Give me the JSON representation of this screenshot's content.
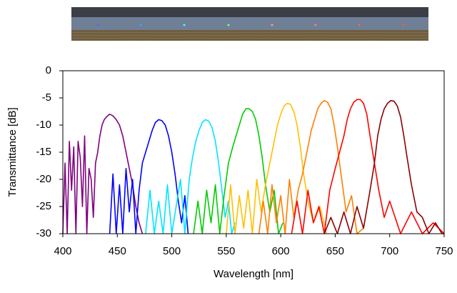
{
  "chart_data": {
    "type": "line",
    "xlabel": "Wavelength [nm]",
    "ylabel": "Transmittance [dB]",
    "xlim": [
      400,
      750
    ],
    "xticks": [
      400,
      450,
      500,
      550,
      600,
      650,
      700,
      750
    ],
    "ylim": [
      -30,
      0
    ],
    "yticks": [
      0,
      -5,
      -10,
      -15,
      -20,
      -25,
      -30
    ],
    "grid": false,
    "series": [
      {
        "color": "#800080",
        "x": [
          400,
          402,
          404,
          406,
          408,
          410,
          412,
          414,
          416,
          418,
          420,
          422,
          424,
          426,
          428,
          430,
          432,
          434,
          436,
          438,
          440,
          443,
          446,
          449,
          452,
          455,
          458,
          461,
          464,
          467,
          470,
          473
        ],
        "values": [
          -30,
          -17,
          -30,
          -13,
          -22,
          -14,
          -30,
          -13,
          -16,
          -25,
          -12,
          -30,
          -18,
          -20,
          -27,
          -17,
          -15,
          -12,
          -10,
          -9,
          -8.5,
          -8,
          -8.3,
          -9,
          -10,
          -12,
          -15,
          -18,
          -21,
          -25,
          -28,
          -30
        ]
      },
      {
        "color": "#0000ff",
        "x": [
          443,
          446,
          449,
          452,
          455,
          458,
          461,
          464,
          467,
          470,
          473,
          476,
          479,
          482,
          485,
          488,
          491,
          494,
          497,
          500,
          503,
          506,
          509,
          512,
          515
        ],
        "values": [
          -30,
          -19,
          -30,
          -21,
          -30,
          -18,
          -26,
          -20,
          -30,
          -22,
          -17,
          -15,
          -13,
          -11,
          -9.5,
          -9,
          -9.2,
          -10,
          -12,
          -15,
          -19,
          -24,
          -28,
          -23,
          -30
        ]
      },
      {
        "color": "#00e5ff",
        "x": [
          476,
          480,
          484,
          488,
          492,
          496,
          500,
          504,
          508,
          512,
          516,
          519,
          522,
          525,
          528,
          531,
          534,
          537,
          540,
          543,
          546,
          549,
          552,
          555,
          558
        ],
        "values": [
          -30,
          -22,
          -30,
          -24,
          -30,
          -21,
          -30,
          -25,
          -20,
          -30,
          -20,
          -16,
          -13,
          -11,
          -9.5,
          -9,
          -9.3,
          -10.5,
          -13,
          -17,
          -22,
          -27,
          -24,
          -30,
          -28
        ]
      },
      {
        "color": "#00cc00",
        "x": [
          520,
          524,
          528,
          532,
          536,
          540,
          544,
          548,
          552,
          556,
          559,
          562,
          565,
          568,
          571,
          574,
          577,
          580,
          583,
          586,
          590,
          594,
          598,
          602
        ],
        "values": [
          -30,
          -24,
          -30,
          -22,
          -28,
          -21,
          -30,
          -23,
          -17,
          -14,
          -12,
          -10,
          -8,
          -7,
          -7,
          -7.5,
          -9,
          -12,
          -16,
          -21,
          -26,
          -22,
          -30,
          -28
        ]
      },
      {
        "color": "#ffc000",
        "x": [
          550,
          554,
          558,
          562,
          566,
          570,
          574,
          578,
          582,
          586,
          590,
          594,
          597,
          600,
          603,
          606,
          609,
          612,
          615,
          618,
          621,
          625,
          630,
          636,
          642
        ],
        "values": [
          -30,
          -21,
          -30,
          -23,
          -29,
          -22,
          -30,
          -20,
          -26,
          -21,
          -17,
          -13,
          -10,
          -8,
          -6.5,
          -6,
          -6.2,
          -7.5,
          -10,
          -14,
          -19,
          -24,
          -28,
          -25,
          -30
        ]
      },
      {
        "color": "#ff7f00",
        "x": [
          580,
          584,
          588,
          592,
          596,
          600,
          604,
          608,
          612,
          616,
          620,
          624,
          628,
          631,
          634,
          637,
          640,
          643,
          646,
          649,
          652,
          656,
          660,
          665,
          670,
          676
        ],
        "values": [
          -30,
          -24,
          -30,
          -21,
          -28,
          -23,
          -30,
          -20,
          -27,
          -22,
          -19,
          -15,
          -11,
          -9,
          -7,
          -6,
          -5.5,
          -5.8,
          -7,
          -10,
          -14,
          -20,
          -26,
          -23,
          -30,
          -29
        ]
      },
      {
        "color": "#ff0000",
        "x": [
          610,
          615,
          620,
          625,
          630,
          635,
          640,
          645,
          650,
          654,
          658,
          661,
          664,
          667,
          670,
          673,
          676,
          679,
          682,
          686,
          690,
          695,
          700,
          710,
          720,
          730,
          740,
          750
        ],
        "values": [
          -30,
          -24,
          -30,
          -22,
          -28,
          -25,
          -30,
          -22,
          -18,
          -15,
          -12,
          -9,
          -7,
          -5.8,
          -5.3,
          -5.3,
          -6,
          -8,
          -12,
          -17,
          -22,
          -27,
          -24,
          -30,
          -26,
          -30,
          -28,
          -30
        ]
      },
      {
        "color": "#8b0000",
        "x": [
          640,
          646,
          652,
          658,
          664,
          670,
          676,
          682,
          686,
          689,
          692,
          695,
          698,
          701,
          704,
          707,
          710,
          713,
          716,
          720,
          725,
          730,
          736,
          742,
          748,
          750
        ],
        "values": [
          -30,
          -27,
          -30,
          -26,
          -30,
          -25,
          -29,
          -22,
          -17,
          -12,
          -9,
          -7,
          -6,
          -5.5,
          -5.6,
          -6.5,
          -8.5,
          -12,
          -16,
          -21,
          -26,
          -27,
          -30,
          -28,
          -30,
          -30
        ]
      }
    ]
  }
}
